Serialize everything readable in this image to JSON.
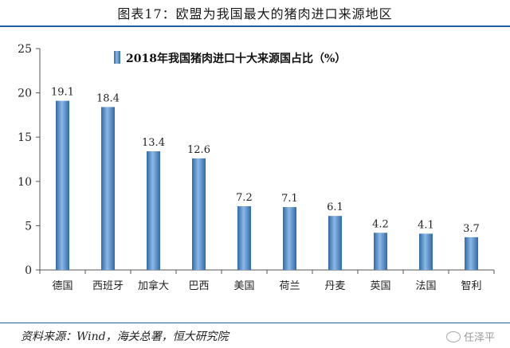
{
  "title": "图表17：欧盟为我国最大的猪肉进口来源地区",
  "source": "资料来源：Wind，海关总署，恒大研究院",
  "watermark": "任泽平",
  "colors": {
    "bar": "#4a86c8",
    "bar_dark": "#2f6aa8",
    "bar_light": "#8db8e6",
    "accent": "#1f5f9f"
  },
  "chart_data": {
    "type": "bar",
    "categories": [
      "德国",
      "西班牙",
      "加拿大",
      "巴西",
      "美国",
      "荷兰",
      "丹麦",
      "英国",
      "法国",
      "智利"
    ],
    "series": [
      {
        "name": "2018年我国猪肉进口十大来源国占比（%）",
        "values": [
          19.1,
          18.4,
          13.4,
          12.6,
          7.2,
          7.1,
          6.1,
          4.2,
          4.1,
          3.7
        ]
      }
    ],
    "value_labels": [
      "19.1",
      "18.4",
      "13.4",
      "12.6",
      "7.2",
      "7.1",
      "6.1",
      "4.2",
      "4.1",
      "3.7"
    ],
    "ylim": [
      0,
      25
    ],
    "yticks": [
      0,
      5,
      10,
      15,
      20,
      25
    ],
    "grid": false,
    "legend_position": "top-center"
  }
}
